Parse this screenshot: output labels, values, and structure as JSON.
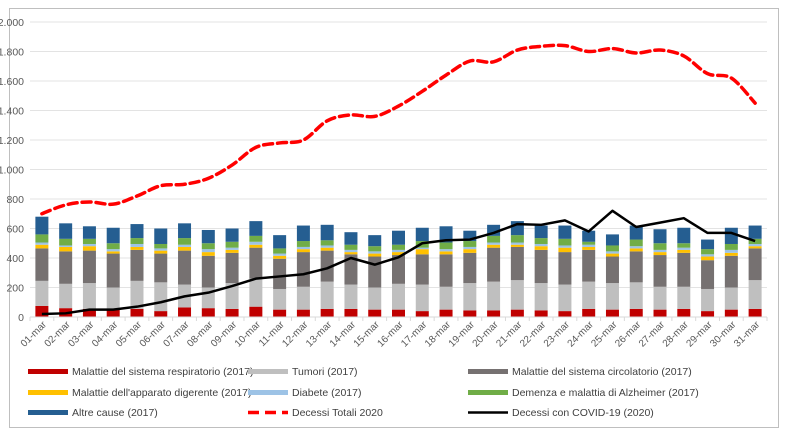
{
  "chart_data": {
    "type": "bar",
    "title": "",
    "xlabel": "",
    "ylabel": "",
    "ylim": [
      0,
      2000
    ],
    "yticks": [
      0,
      200,
      400,
      600,
      800,
      1000,
      1200,
      1400,
      1600,
      1800,
      2000
    ],
    "ytick_labels": [
      "0",
      "200",
      "400",
      "600",
      "800",
      "1.000",
      "1.200",
      "1.400",
      "1.600",
      "1.800",
      "2.000"
    ],
    "grid": true,
    "legend_position": "bottom",
    "categories": [
      "01-mar",
      "02-mar",
      "03-mar",
      "04-mar",
      "05-mar",
      "06-mar",
      "07-mar",
      "08-mar",
      "09-mar",
      "10-mar",
      "11-mar",
      "12-mar",
      "13-mar",
      "14-mar",
      "15-mar",
      "16-mar",
      "17-mar",
      "18-mar",
      "19-mar",
      "20-mar",
      "21-mar",
      "22-mar",
      "23-mar",
      "24-mar",
      "25-mar",
      "26-mar",
      "27-mar",
      "28-mar",
      "29-mar",
      "30-mar",
      "31-mar"
    ],
    "series": [
      {
        "name": "Malattie del sistema respiratorio (2017)",
        "kind": "bar",
        "color": "#c00000",
        "values": [
          75,
          60,
          55,
          55,
          55,
          40,
          65,
          60,
          55,
          70,
          50,
          50,
          55,
          55,
          50,
          50,
          40,
          50,
          45,
          45,
          50,
          45,
          40,
          55,
          50,
          55,
          50,
          55,
          40,
          50,
          55
        ]
      },
      {
        "name": "Tumori (2017)",
        "kind": "bar",
        "color": "#bfbfbf",
        "values": [
          170,
          165,
          175,
          145,
          190,
          195,
          155,
          140,
          175,
          190,
          140,
          155,
          185,
          165,
          150,
          175,
          180,
          155,
          185,
          195,
          200,
          185,
          180,
          185,
          180,
          180,
          155,
          150,
          150,
          150,
          195
        ]
      },
      {
        "name": "Malattie del sistema circolatorio (2017)",
        "kind": "bar",
        "color": "#767171",
        "values": [
          220,
          220,
          220,
          230,
          210,
          195,
          230,
          215,
          205,
          210,
          205,
          235,
          210,
          205,
          210,
          195,
          205,
          220,
          205,
          230,
          225,
          225,
          220,
          215,
          180,
          210,
          215,
          230,
          195,
          215,
          215
        ]
      },
      {
        "name": "Malattie dell'apparato digerente (2017)",
        "kind": "bar",
        "color": "#ffc000",
        "values": [
          25,
          30,
          30,
          15,
          20,
          20,
          25,
          25,
          20,
          20,
          20,
          20,
          20,
          15,
          20,
          20,
          35,
          20,
          25,
          20,
          15,
          25,
          30,
          20,
          20,
          20,
          20,
          20,
          25,
          20,
          15
        ]
      },
      {
        "name": "Diabete (2017)",
        "kind": "bar",
        "color": "#9dc3e6",
        "values": [
          15,
          10,
          15,
          15,
          20,
          15,
          15,
          20,
          15,
          20,
          15,
          15,
          15,
          15,
          15,
          15,
          10,
          15,
          15,
          15,
          15,
          15,
          15,
          15,
          15,
          15,
          15,
          15,
          15,
          20,
          15
        ]
      },
      {
        "name": "Demenza e malattia di Alzheimer (2017)",
        "kind": "bar",
        "color": "#70ad47",
        "values": [
          55,
          45,
          35,
          40,
          40,
          30,
          45,
          40,
          40,
          40,
          35,
          40,
          35,
          35,
          35,
          35,
          45,
          45,
          40,
          45,
          50,
          40,
          45,
          20,
          40,
          45,
          45,
          30,
          35,
          40,
          35
        ]
      },
      {
        "name": "Altre cause (2017)",
        "kind": "bar",
        "color": "#255e91",
        "values": [
          120,
          105,
          85,
          105,
          95,
          105,
          100,
          90,
          90,
          100,
          90,
          105,
          105,
          85,
          75,
          95,
          90,
          110,
          70,
          75,
          95,
          85,
          90,
          75,
          75,
          95,
          95,
          105,
          65,
          110,
          90
        ]
      },
      {
        "name": "Decessi Totali 2020",
        "kind": "line",
        "style": "dashed",
        "color": "#ff0000",
        "values": [
          700,
          760,
          780,
          765,
          820,
          890,
          900,
          940,
          1030,
          1150,
          1180,
          1200,
          1330,
          1370,
          1360,
          1430,
          1530,
          1640,
          1735,
          1730,
          1810,
          1835,
          1840,
          1800,
          1820,
          1790,
          1810,
          1770,
          1650,
          1620,
          1450
        ]
      },
      {
        "name": "Decessi con COVID-19 (2020)",
        "kind": "line",
        "style": "solid",
        "color": "#000000",
        "values": [
          20,
          25,
          50,
          50,
          70,
          100,
          140,
          165,
          210,
          260,
          275,
          290,
          330,
          400,
          355,
          405,
          500,
          520,
          525,
          570,
          630,
          625,
          655,
          580,
          720,
          610,
          640,
          670,
          570,
          570,
          515
        ]
      }
    ]
  }
}
